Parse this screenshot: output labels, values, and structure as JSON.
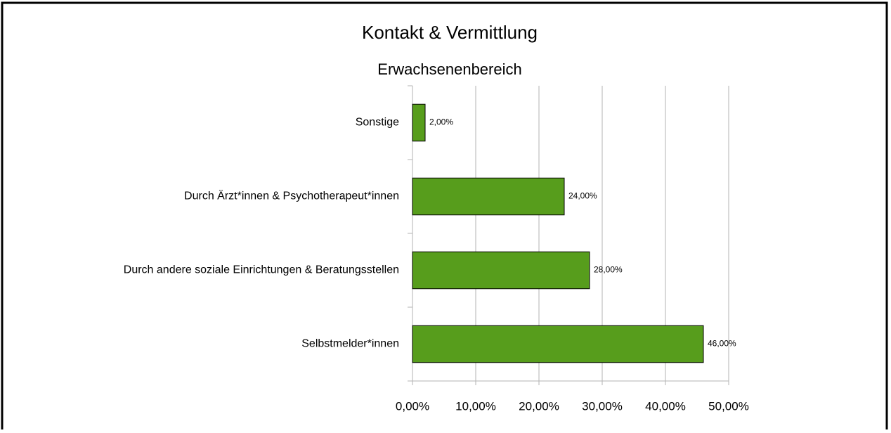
{
  "chart_data": {
    "type": "hbar",
    "title": "Kontakt & Vermittlung",
    "subtitle": "Erwachsenenbereich",
    "categories": [
      "Sonstige",
      "Durch Ärzt*innen & Psychotherapeut*innen",
      "Durch andere soziale Einrichtungen & Beratungsstellen",
      "Selbstmelder*innen"
    ],
    "values": [
      2,
      24,
      28,
      46
    ],
    "value_labels": [
      "2,00%",
      "24,00%",
      "28,00%",
      "46,00%"
    ],
    "color": "#579d1c",
    "xlim": [
      0,
      50
    ],
    "xticks": [
      {
        "value": 0,
        "label": "0,00%"
      },
      {
        "value": 10,
        "label": "10,00%"
      },
      {
        "value": 20,
        "label": "20,00%"
      },
      {
        "value": 30,
        "label": "30,00%"
      },
      {
        "value": 40,
        "label": "40,00%"
      },
      {
        "value": 50,
        "label": "50,00%"
      }
    ],
    "grid": true
  }
}
